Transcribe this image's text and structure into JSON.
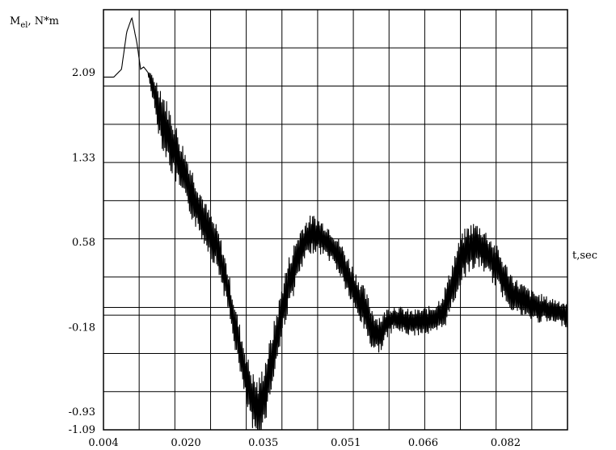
{
  "chart_data": {
    "type": "line",
    "ylabel": "M",
    "ylabel_sub": "el",
    "ylabel_unit": ", N*m",
    "xlabel": "t,sec",
    "xlim": [
      0.004,
      0.094
    ],
    "ylim": [
      -1.09,
      2.65
    ],
    "x_ticks": [
      "0.004",
      "0.020",
      "0.035",
      "0.051",
      "0.066",
      "0.082"
    ],
    "x_tick_values": [
      0.004,
      0.02,
      0.035,
      0.051,
      0.066,
      0.082
    ],
    "y_ticks": [
      "2.09",
      "1.33",
      "0.58",
      "-0.18",
      "-0.93",
      "-1.09"
    ],
    "y_tick_values": [
      2.09,
      1.33,
      0.58,
      -0.18,
      -0.93,
      -1.09
    ],
    "grid": true,
    "line_color": "#000000",
    "series": [
      {
        "x": [
          0.004,
          0.006,
          0.0075,
          0.0085,
          0.0095,
          0.0105,
          0.0112,
          0.0118,
          0.0125,
          0.013,
          0.0135,
          0.014,
          0.0145,
          0.015,
          0.016,
          0.017,
          0.018,
          0.019,
          0.02,
          0.021,
          0.022,
          0.023,
          0.024,
          0.025,
          0.026,
          0.027,
          0.028,
          0.029,
          0.03,
          0.031,
          0.032,
          0.033,
          0.034,
          0.035,
          0.036,
          0.037,
          0.038,
          0.039,
          0.04,
          0.041,
          0.042,
          0.043,
          0.044,
          0.045,
          0.046,
          0.047,
          0.048,
          0.049,
          0.05,
          0.051,
          0.052,
          0.053,
          0.054,
          0.055,
          0.056,
          0.057,
          0.058,
          0.059,
          0.06,
          0.061,
          0.062,
          0.063,
          0.064,
          0.065,
          0.066,
          0.067,
          0.068,
          0.069,
          0.07,
          0.071,
          0.072,
          0.073,
          0.074,
          0.075,
          0.076,
          0.077,
          0.078,
          0.079,
          0.08,
          0.081,
          0.082,
          0.083,
          0.084,
          0.085,
          0.086,
          0.087,
          0.088,
          0.089,
          0.09,
          0.091,
          0.092,
          0.093,
          0.094
        ],
        "y": [
          2.05,
          2.05,
          2.12,
          2.45,
          2.58,
          2.35,
          2.12,
          2.14,
          2.1,
          2.04,
          1.96,
          1.88,
          1.8,
          1.73,
          1.6,
          1.48,
          1.37,
          1.25,
          1.14,
          1.03,
          0.92,
          0.82,
          0.72,
          0.62,
          0.53,
          0.38,
          0.18,
          -0.05,
          -0.28,
          -0.5,
          -0.7,
          -0.85,
          -0.94,
          -0.8,
          -0.62,
          -0.4,
          -0.18,
          0.05,
          0.22,
          0.35,
          0.48,
          0.58,
          0.64,
          0.66,
          0.63,
          0.6,
          0.56,
          0.5,
          0.42,
          0.32,
          0.22,
          0.12,
          0.04,
          -0.06,
          -0.18,
          -0.24,
          -0.22,
          -0.14,
          -0.1,
          -0.1,
          -0.12,
          -0.13,
          -0.14,
          -0.13,
          -0.12,
          -0.12,
          -0.11,
          -0.08,
          -0.02,
          0.1,
          0.25,
          0.38,
          0.48,
          0.53,
          0.55,
          0.54,
          0.5,
          0.44,
          0.38,
          0.3,
          0.22,
          0.15,
          0.1,
          0.07,
          0.04,
          0.02,
          0.0,
          -0.01,
          -0.02,
          -0.03,
          -0.04,
          -0.05,
          -0.06
        ],
        "oscillation": [
          0,
          0,
          0,
          0,
          0,
          0,
          0,
          0,
          0,
          0.05,
          0.12,
          0.18,
          0.22,
          0.26,
          0.28,
          0.28,
          0.27,
          0.26,
          0.25,
          0.24,
          0.23,
          0.22,
          0.2,
          0.2,
          0.2,
          0.2,
          0.2,
          0.2,
          0.22,
          0.24,
          0.26,
          0.28,
          0.3,
          0.3,
          0.28,
          0.26,
          0.25,
          0.24,
          0.24,
          0.23,
          0.22,
          0.2,
          0.18,
          0.17,
          0.16,
          0.16,
          0.16,
          0.16,
          0.17,
          0.18,
          0.19,
          0.2,
          0.2,
          0.2,
          0.2,
          0.18,
          0.16,
          0.14,
          0.12,
          0.12,
          0.12,
          0.12,
          0.12,
          0.12,
          0.12,
          0.13,
          0.14,
          0.16,
          0.18,
          0.2,
          0.22,
          0.22,
          0.22,
          0.22,
          0.22,
          0.2,
          0.2,
          0.2,
          0.2,
          0.19,
          0.18,
          0.17,
          0.16,
          0.16,
          0.15,
          0.14,
          0.14,
          0.13,
          0.12,
          0.12,
          0.12,
          0.12,
          0.12
        ]
      }
    ]
  }
}
